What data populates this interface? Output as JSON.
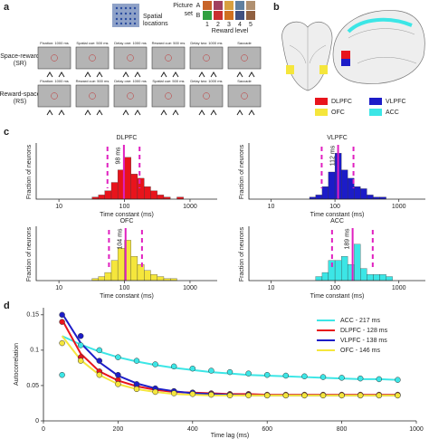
{
  "panels": {
    "a": "a",
    "b": "b",
    "c": "c",
    "d": "d"
  },
  "task": {
    "spatial_label": [
      "Spatial",
      "locations"
    ],
    "picture_label": [
      "Picture",
      "set"
    ],
    "set_names": [
      "A",
      "B"
    ],
    "reward_levels": [
      1,
      2,
      3,
      4,
      5
    ],
    "reward_label": "Reward level",
    "rows": [
      {
        "name": "Space-reward",
        "abbr": "(SR)",
        "screens": [
          "Fixation: 1000 ms",
          "Spatial cue: 500 ms",
          "Delay one: 1000 ms",
          "Reward cue: 500 ms",
          "Delay two: 1000 ms",
          "Saccade"
        ]
      },
      {
        "name": "Reward-space",
        "abbr": "(RS)",
        "screens": [
          "Fixation: 1000 ms",
          "Reward cue: 500 ms",
          "Delay one: 1000 ms",
          "Spatial cue: 500 ms",
          "Delay two: 1000 ms",
          "Saccade"
        ]
      }
    ]
  },
  "brain": {
    "legend": [
      {
        "label": "DLPFC",
        "color": "#e8141c"
      },
      {
        "label": "VLPFC",
        "color": "#1c1cc8"
      },
      {
        "label": "OFC",
        "color": "#f5e63c"
      },
      {
        "label": "ACC",
        "color": "#3ce6e6"
      }
    ]
  },
  "chart_data": [
    {
      "type": "histogram",
      "title": "DLPFC",
      "color": "#e8141c",
      "y_label": "Fraction of neurons",
      "x_label": "Time constant (ms)",
      "bins": [
        32,
        40,
        50,
        63,
        79,
        100,
        126,
        158,
        200,
        251,
        316,
        398,
        501,
        631,
        794
      ],
      "values": [
        0.01,
        0.02,
        0.04,
        0.08,
        0.14,
        0.2,
        0.12,
        0.1,
        0.06,
        0.04,
        0.02,
        0.01,
        0,
        0.01
      ],
      "median": {
        "value": 98,
        "label": "98 ms"
      },
      "quartiles": [
        55,
        170
      ],
      "xlim": [
        4.5,
        2600
      ],
      "ylim": [
        0,
        0.26
      ],
      "xticks": [
        10,
        100,
        1000
      ],
      "log_x": true
    },
    {
      "type": "histogram",
      "title": "VLPFC",
      "color": "#1c1cc8",
      "y_label": "Fraction of neurons",
      "x_label": "Time constant (ms)",
      "bins": [
        32,
        40,
        50,
        63,
        79,
        100,
        126,
        158,
        200,
        251,
        316,
        398,
        501,
        631,
        794
      ],
      "values": [
        0,
        0.01,
        0.02,
        0.06,
        0.13,
        0.22,
        0.14,
        0.1,
        0.06,
        0.05,
        0.02,
        0.01,
        0.01,
        0
      ],
      "median": {
        "value": 112,
        "label": "112 ms"
      },
      "quartiles": [
        62,
        195
      ],
      "xlim": [
        4.5,
        2600
      ],
      "ylim": [
        0,
        0.26
      ],
      "xticks": [
        10,
        100,
        1000
      ],
      "log_x": true
    },
    {
      "type": "histogram",
      "title": "OFC",
      "color": "#f5e63c",
      "y_label": "Fraction of neurons",
      "x_label": "Time constant (ms)",
      "bins": [
        32,
        40,
        50,
        63,
        79,
        100,
        126,
        158,
        200,
        251,
        316,
        398,
        501,
        631,
        794
      ],
      "values": [
        0.01,
        0.02,
        0.04,
        0.1,
        0.16,
        0.2,
        0.12,
        0.08,
        0.05,
        0.03,
        0.02,
        0.01,
        0.01,
        0
      ],
      "median": {
        "value": 104,
        "label": "104 ms"
      },
      "quartiles": [
        58,
        185
      ],
      "xlim": [
        4.5,
        2600
      ],
      "ylim": [
        0,
        0.26
      ],
      "xticks": [
        10,
        100,
        1000
      ],
      "log_x": true
    },
    {
      "type": "histogram",
      "title": "ACC",
      "color": "#3ce6e6",
      "y_label": "Fraction of neurons",
      "x_label": "Time constant (ms)",
      "bins": [
        32,
        40,
        50,
        63,
        79,
        100,
        126,
        158,
        200,
        251,
        316,
        398,
        501,
        631,
        794
      ],
      "values": [
        0,
        0,
        0.02,
        0.04,
        0.1,
        0.1,
        0.12,
        0.08,
        0.18,
        0.06,
        0.03,
        0.03,
        0.03,
        0.02
      ],
      "median": {
        "value": 189,
        "label": "189 ms"
      },
      "quartiles": [
        90,
        390
      ],
      "xlim": [
        4.5,
        2600
      ],
      "ylim": [
        0,
        0.26
      ],
      "xticks": [
        10,
        100,
        1000
      ],
      "log_x": true
    },
    {
      "type": "line",
      "y_label": "Autocorrelation",
      "x_label": "Time lag (ms)",
      "x": [
        50,
        100,
        150,
        200,
        250,
        300,
        350,
        400,
        450,
        500,
        550,
        600,
        650,
        700,
        750,
        800,
        850,
        900,
        950
      ],
      "xlim": [
        0,
        1000
      ],
      "ylim": [
        0,
        0.16
      ],
      "xticks": [
        0,
        200,
        400,
        600,
        800,
        1000
      ],
      "yticks": [
        0,
        0.05,
        0.1,
        0.15
      ],
      "legend": "upper-right",
      "series": [
        {
          "name": "ACC - 217 ms",
          "color": "#3ce6e6",
          "values": [
            0.065,
            0.107,
            0.1,
            0.09,
            0.085,
            0.08,
            0.077,
            0.074,
            0.071,
            0.069,
            0.067,
            0.065,
            0.064,
            0.063,
            0.062,
            0.061,
            0.06,
            0.059,
            0.058
          ],
          "fit": [
            0.12,
            0.108,
            0.098,
            0.09,
            0.084,
            0.079,
            0.075,
            0.072,
            0.069,
            0.067,
            0.065,
            0.064,
            0.063,
            0.062,
            0.061,
            0.06,
            0.059,
            0.059,
            0.058
          ]
        },
        {
          "name": "DLPFC - 128 ms",
          "color": "#e8141c",
          "values": [
            0.14,
            0.09,
            0.07,
            0.058,
            0.05,
            0.045,
            0.042,
            0.04,
            0.039,
            0.038,
            0.038,
            0.037,
            0.037,
            0.037,
            0.037,
            0.037,
            0.037,
            0.037,
            0.037
          ],
          "fit": [
            0.143,
            0.095,
            0.07,
            0.057,
            0.049,
            0.044,
            0.041,
            0.04,
            0.039,
            0.038,
            0.038,
            0.037,
            0.037,
            0.037,
            0.037,
            0.037,
            0.037,
            0.037,
            0.037
          ]
        },
        {
          "name": "VLPFC - 138 ms",
          "color": "#1c1cc8",
          "values": [
            0.15,
            0.12,
            0.085,
            0.065,
            0.052,
            0.046,
            0.042,
            0.04,
            0.038,
            0.037,
            0.037,
            0.036,
            0.036,
            0.036,
            0.036,
            0.036,
            0.036,
            0.036,
            0.036
          ],
          "fit": [
            0.152,
            0.11,
            0.083,
            0.064,
            0.053,
            0.046,
            0.042,
            0.039,
            0.038,
            0.037,
            0.036,
            0.036,
            0.036,
            0.036,
            0.036,
            0.036,
            0.036,
            0.036,
            0.036
          ]
        },
        {
          "name": "OFC - 146 ms",
          "color": "#f5e63c",
          "values": [
            0.11,
            0.085,
            0.065,
            0.052,
            0.045,
            0.041,
            0.039,
            0.038,
            0.037,
            0.036,
            0.036,
            0.036,
            0.036,
            0.036,
            0.036,
            0.036,
            0.036,
            0.036,
            0.036
          ],
          "fit": [
            0.12,
            0.086,
            0.065,
            0.052,
            0.045,
            0.041,
            0.038,
            0.037,
            0.036,
            0.036,
            0.036,
            0.036,
            0.036,
            0.036,
            0.036,
            0.036,
            0.036,
            0.036,
            0.036
          ]
        }
      ]
    }
  ]
}
